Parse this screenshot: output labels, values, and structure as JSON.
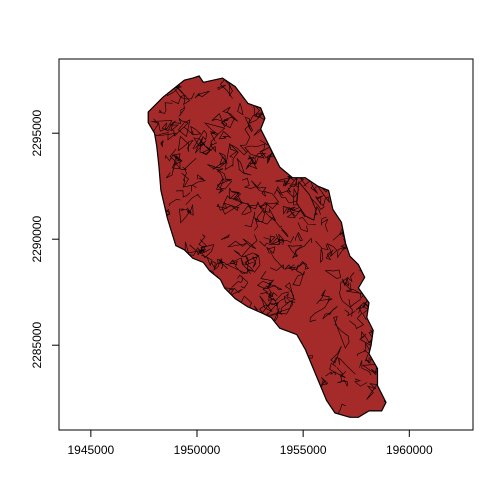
{
  "chart_data": {
    "type": "map",
    "title": "",
    "xlabel": "",
    "ylabel": "",
    "xlim": [
      1943500,
      1963000
    ],
    "ylim": [
      2281000,
      2298500
    ],
    "x_ticks": [
      {
        "value": 1945000,
        "label": "1945000"
      },
      {
        "value": 1950000,
        "label": "1950000"
      },
      {
        "value": 1955000,
        "label": "1955000"
      },
      {
        "value": 1960000,
        "label": "1960000"
      }
    ],
    "y_ticks": [
      {
        "value": 2285000,
        "label": "2285000"
      },
      {
        "value": 2290000,
        "label": "2290000"
      },
      {
        "value": 2295000,
        "label": "2295000"
      }
    ],
    "fill_color": "#a52a2a",
    "border_color": "#000000",
    "grid": false,
    "legend": "none",
    "region_outline": [
      [
        1947700,
        2296000
      ],
      [
        1948400,
        2296700
      ],
      [
        1949400,
        2297500
      ],
      [
        1949800,
        2297600
      ],
      [
        1950100,
        2297700
      ],
      [
        1950300,
        2297400
      ],
      [
        1951200,
        2297600
      ],
      [
        1951800,
        2297200
      ],
      [
        1952400,
        2296400
      ],
      [
        1953000,
        2296200
      ],
      [
        1953200,
        2295700
      ],
      [
        1953000,
        2295200
      ],
      [
        1953300,
        2294600
      ],
      [
        1953900,
        2293400
      ],
      [
        1954500,
        2292900
      ],
      [
        1955100,
        2292900
      ],
      [
        1955700,
        2292500
      ],
      [
        1956200,
        2292300
      ],
      [
        1956400,
        2291400
      ],
      [
        1956800,
        2290800
      ],
      [
        1957000,
        2289800
      ],
      [
        1957200,
        2289200
      ],
      [
        1957600,
        2288800
      ],
      [
        1957900,
        2288200
      ],
      [
        1957600,
        2287700
      ],
      [
        1958100,
        2287000
      ],
      [
        1958000,
        2286300
      ],
      [
        1958300,
        2285700
      ],
      [
        1958200,
        2285000
      ],
      [
        1958100,
        2284600
      ],
      [
        1958500,
        2283900
      ],
      [
        1958500,
        2283100
      ],
      [
        1958900,
        2282300
      ],
      [
        1958700,
        2281900
      ],
      [
        1958100,
        2281900
      ],
      [
        1957600,
        2281600
      ],
      [
        1957200,
        2281600
      ],
      [
        1956500,
        2281800
      ],
      [
        1956100,
        2282400
      ],
      [
        1955600,
        2283600
      ],
      [
        1955100,
        2284800
      ],
      [
        1954700,
        2285500
      ],
      [
        1953900,
        2285800
      ],
      [
        1953500,
        2286300
      ],
      [
        1953100,
        2286500
      ],
      [
        1952400,
        2286800
      ],
      [
        1951800,
        2287200
      ],
      [
        1951300,
        2287700
      ],
      [
        1951100,
        2288100
      ],
      [
        1950600,
        2288500
      ],
      [
        1950300,
        2288900
      ],
      [
        1949800,
        2289100
      ],
      [
        1949400,
        2289500
      ],
      [
        1949000,
        2289700
      ],
      [
        1948600,
        2291000
      ],
      [
        1948300,
        2292300
      ],
      [
        1948200,
        2293500
      ],
      [
        1948100,
        2294400
      ],
      [
        1948000,
        2295000
      ],
      [
        1947700,
        2295500
      ]
    ],
    "river_feature": [
      [
        1954800,
        2292700
      ],
      [
        1955300,
        2292100
      ],
      [
        1955600,
        2291400
      ],
      [
        1955500,
        2290900
      ],
      [
        1955100,
        2291100
      ],
      [
        1954700,
        2291700
      ]
    ]
  }
}
